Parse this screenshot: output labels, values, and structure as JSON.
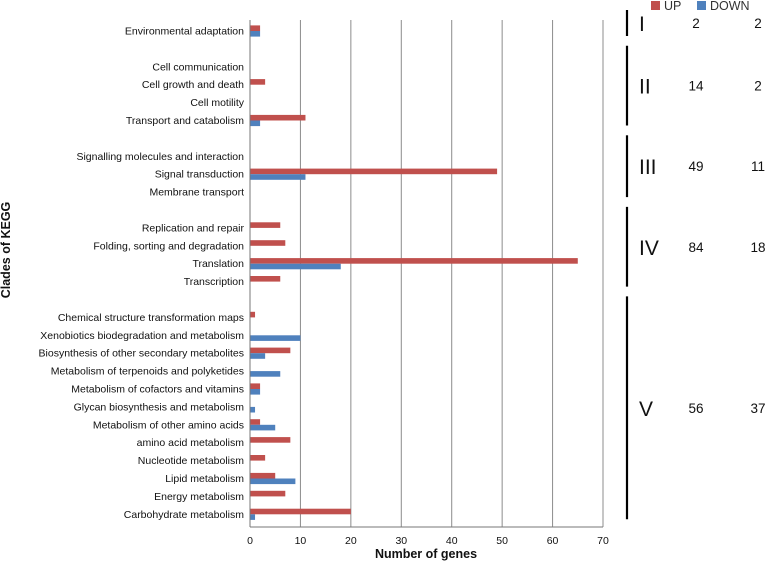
{
  "chart_data": {
    "type": "bar",
    "orientation": "horizontal",
    "title": "",
    "xlabel": "Number of genes",
    "ylabel": "Clades of KEGG",
    "xlim": [
      0,
      70
    ],
    "xticks": [
      0,
      10,
      20,
      30,
      40,
      50,
      60,
      70
    ],
    "grid": "vertical",
    "legend_position": "top-right",
    "colors": {
      "UP": "#c0504d",
      "DOWN": "#4f81bd"
    },
    "categories": [
      "Environmental adaptation",
      "",
      "Cell communication",
      "Cell growth and death",
      "Cell motility",
      "Transport and catabolism",
      "",
      "Signalling molecules and interaction",
      "Signal transduction",
      "Membrane transport",
      "",
      "Replication and repair",
      "Folding, sorting and degradation",
      "Translation",
      "Transcription",
      "",
      "Chemical structure transformation maps",
      "Xenobiotics biodegradation and metabolism",
      "Biosynthesis of other secondary metabolites",
      "Metabolism of terpenoids and polyketides",
      "Metabolism of cofactors and vitamins",
      "Glycan biosynthesis and metabolism",
      "Metabolism of other amino acids",
      "amino acid metabolism",
      "Nucleotide metabolism",
      "Lipid metabolism",
      "Energy metabolism",
      "Carbohydrate metabolism"
    ],
    "series": [
      {
        "name": "UP",
        "values": [
          2,
          0,
          0,
          3,
          0,
          11,
          0,
          0,
          49,
          0,
          0,
          6,
          7,
          65,
          6,
          0,
          1,
          0,
          8,
          0,
          2,
          0,
          2,
          8,
          3,
          5,
          7,
          20
        ]
      },
      {
        "name": "DOWN",
        "values": [
          2,
          0,
          0,
          0,
          0,
          2,
          0,
          0,
          11,
          0,
          0,
          0,
          0,
          18,
          0,
          0,
          0,
          10,
          3,
          6,
          2,
          1,
          5,
          0,
          0,
          9,
          0,
          1
        ]
      }
    ],
    "clades": [
      {
        "label": "I",
        "up": "2",
        "down": "2",
        "first": 0,
        "last": 0
      },
      {
        "label": "II",
        "up": "14",
        "down": "2",
        "first": 2,
        "last": 5
      },
      {
        "label": "III",
        "up": "49",
        "down": "11",
        "first": 7,
        "last": 9
      },
      {
        "label": "IV",
        "up": "84",
        "down": "18",
        "first": 11,
        "last": 14
      },
      {
        "label": "V",
        "up": "56",
        "down": "37",
        "first": 16,
        "last": 27
      }
    ]
  }
}
